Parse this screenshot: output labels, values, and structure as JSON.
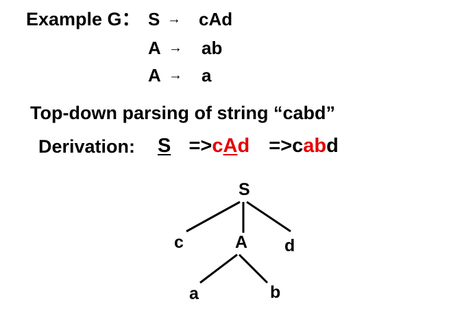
{
  "grammar": {
    "title": "Example G：",
    "rules": [
      {
        "lhs": "S",
        "arrow": "→",
        "rhs": "cAd"
      },
      {
        "lhs": "A",
        "arrow": "→",
        "rhs": "ab"
      },
      {
        "lhs": "A",
        "arrow": "→",
        "rhs": "a"
      }
    ]
  },
  "heading": "Top-down parsing of string “cabd”",
  "derivation": {
    "label": "Derivation:",
    "start": "S",
    "step1": {
      "arrow": "=>",
      "c": "c",
      "A": "A",
      "d": "d"
    },
    "step2": {
      "arrow": "=>",
      "c": "c",
      "ab": "ab",
      "d": "d"
    }
  },
  "tree": {
    "root": "S",
    "level1": [
      "c",
      "A",
      "d"
    ],
    "level2": [
      "a",
      "b"
    ]
  },
  "colors": {
    "highlight": "#e60000",
    "text": "#000000"
  }
}
